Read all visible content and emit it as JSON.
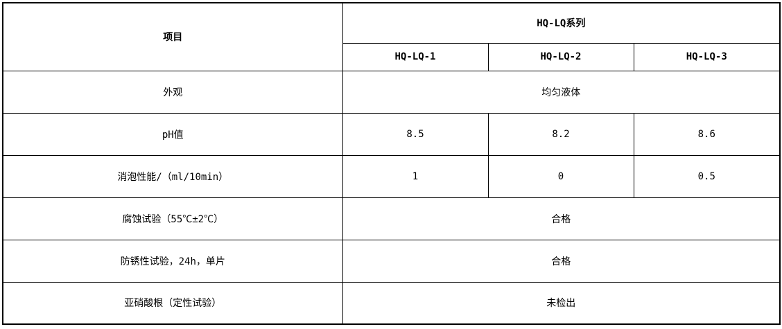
{
  "table": {
    "header": {
      "item": "项目",
      "series": "HQ-LQ系列",
      "models": [
        "HQ-LQ-1",
        "HQ-LQ-2",
        "HQ-LQ-3"
      ]
    },
    "rows": [
      {
        "label": "外观",
        "merged": "均匀液体"
      },
      {
        "label": "pH值",
        "values": [
          "8.5",
          "8.2",
          "8.6"
        ]
      },
      {
        "label": "消泡性能/（ml/10min）",
        "values": [
          "1",
          "0",
          "0.5"
        ]
      },
      {
        "label": "腐蚀试验（55℃±2℃）",
        "merged": "合格"
      },
      {
        "label": "防锈性试验，24h，单片",
        "merged": "合格"
      },
      {
        "label": "亚硝酸根（定性试验）",
        "merged": "未检出"
      }
    ]
  }
}
